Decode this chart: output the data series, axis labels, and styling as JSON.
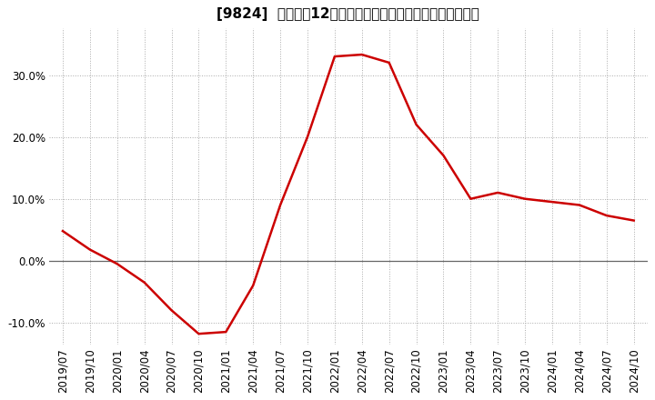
{
  "title": "[9824]  売上高の12か月移動合計の対前年同期増減率の推移",
  "line_color": "#cc0000",
  "background_color": "#ffffff",
  "plot_bg_color": "#ffffff",
  "grid_color": "#aaaaaa",
  "zero_line_color": "#666666",
  "ylim": [
    -0.135,
    0.375
  ],
  "yticks": [
    -0.1,
    0.0,
    0.1,
    0.2,
    0.3
  ],
  "ytick_labels": [
    "-10.0%",
    "0.0%",
    "10.0%",
    "20.0%",
    "30.0%"
  ],
  "dates": [
    "2019/07",
    "2019/10",
    "2020/01",
    "2020/04",
    "2020/07",
    "2020/10",
    "2021/01",
    "2021/04",
    "2021/07",
    "2021/10",
    "2022/01",
    "2022/04",
    "2022/07",
    "2022/10",
    "2023/01",
    "2023/04",
    "2023/07",
    "2023/10",
    "2024/01",
    "2024/04",
    "2024/07",
    "2024/10"
  ],
  "values": [
    0.048,
    0.018,
    -0.005,
    -0.035,
    -0.08,
    -0.118,
    -0.115,
    -0.04,
    0.09,
    0.2,
    0.33,
    0.333,
    0.32,
    0.22,
    0.17,
    0.1,
    0.11,
    0.1,
    0.095,
    0.09,
    0.073,
    0.065
  ],
  "title_fontsize": 11,
  "tick_fontsize": 8.5,
  "linewidth": 1.8
}
